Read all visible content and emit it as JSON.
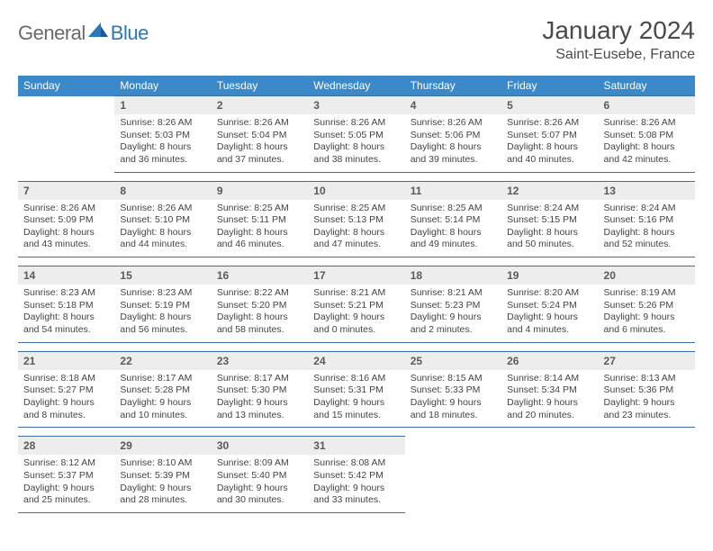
{
  "brand": {
    "part1": "General",
    "part2": "Blue"
  },
  "title": "January 2024",
  "location": "Saint-Eusebe, France",
  "dow": [
    "Sunday",
    "Monday",
    "Tuesday",
    "Wednesday",
    "Thursday",
    "Friday",
    "Saturday"
  ],
  "colors": {
    "header_bg": "#3b89c9",
    "header_text": "#ffffff",
    "rule": "#3b6fa0",
    "daynum_bg": "#ededed",
    "brand_gray": "#6a6a6a",
    "brand_blue": "#2c77b8",
    "text": "#444444",
    "background": "#ffffff"
  },
  "weeks": [
    [
      null,
      {
        "n": "1",
        "sr": "8:26 AM",
        "ss": "5:03 PM",
        "dl": "8 hours and 36 minutes."
      },
      {
        "n": "2",
        "sr": "8:26 AM",
        "ss": "5:04 PM",
        "dl": "8 hours and 37 minutes."
      },
      {
        "n": "3",
        "sr": "8:26 AM",
        "ss": "5:05 PM",
        "dl": "8 hours and 38 minutes."
      },
      {
        "n": "4",
        "sr": "8:26 AM",
        "ss": "5:06 PM",
        "dl": "8 hours and 39 minutes."
      },
      {
        "n": "5",
        "sr": "8:26 AM",
        "ss": "5:07 PM",
        "dl": "8 hours and 40 minutes."
      },
      {
        "n": "6",
        "sr": "8:26 AM",
        "ss": "5:08 PM",
        "dl": "8 hours and 42 minutes."
      }
    ],
    [
      {
        "n": "7",
        "sr": "8:26 AM",
        "ss": "5:09 PM",
        "dl": "8 hours and 43 minutes."
      },
      {
        "n": "8",
        "sr": "8:26 AM",
        "ss": "5:10 PM",
        "dl": "8 hours and 44 minutes."
      },
      {
        "n": "9",
        "sr": "8:25 AM",
        "ss": "5:11 PM",
        "dl": "8 hours and 46 minutes."
      },
      {
        "n": "10",
        "sr": "8:25 AM",
        "ss": "5:13 PM",
        "dl": "8 hours and 47 minutes."
      },
      {
        "n": "11",
        "sr": "8:25 AM",
        "ss": "5:14 PM",
        "dl": "8 hours and 49 minutes."
      },
      {
        "n": "12",
        "sr": "8:24 AM",
        "ss": "5:15 PM",
        "dl": "8 hours and 50 minutes."
      },
      {
        "n": "13",
        "sr": "8:24 AM",
        "ss": "5:16 PM",
        "dl": "8 hours and 52 minutes."
      }
    ],
    [
      {
        "n": "14",
        "sr": "8:23 AM",
        "ss": "5:18 PM",
        "dl": "8 hours and 54 minutes."
      },
      {
        "n": "15",
        "sr": "8:23 AM",
        "ss": "5:19 PM",
        "dl": "8 hours and 56 minutes."
      },
      {
        "n": "16",
        "sr": "8:22 AM",
        "ss": "5:20 PM",
        "dl": "8 hours and 58 minutes."
      },
      {
        "n": "17",
        "sr": "8:21 AM",
        "ss": "5:21 PM",
        "dl": "9 hours and 0 minutes."
      },
      {
        "n": "18",
        "sr": "8:21 AM",
        "ss": "5:23 PM",
        "dl": "9 hours and 2 minutes."
      },
      {
        "n": "19",
        "sr": "8:20 AM",
        "ss": "5:24 PM",
        "dl": "9 hours and 4 minutes."
      },
      {
        "n": "20",
        "sr": "8:19 AM",
        "ss": "5:26 PM",
        "dl": "9 hours and 6 minutes."
      }
    ],
    [
      {
        "n": "21",
        "sr": "8:18 AM",
        "ss": "5:27 PM",
        "dl": "9 hours and 8 minutes."
      },
      {
        "n": "22",
        "sr": "8:17 AM",
        "ss": "5:28 PM",
        "dl": "9 hours and 10 minutes."
      },
      {
        "n": "23",
        "sr": "8:17 AM",
        "ss": "5:30 PM",
        "dl": "9 hours and 13 minutes."
      },
      {
        "n": "24",
        "sr": "8:16 AM",
        "ss": "5:31 PM",
        "dl": "9 hours and 15 minutes."
      },
      {
        "n": "25",
        "sr": "8:15 AM",
        "ss": "5:33 PM",
        "dl": "9 hours and 18 minutes."
      },
      {
        "n": "26",
        "sr": "8:14 AM",
        "ss": "5:34 PM",
        "dl": "9 hours and 20 minutes."
      },
      {
        "n": "27",
        "sr": "8:13 AM",
        "ss": "5:36 PM",
        "dl": "9 hours and 23 minutes."
      }
    ],
    [
      {
        "n": "28",
        "sr": "8:12 AM",
        "ss": "5:37 PM",
        "dl": "9 hours and 25 minutes."
      },
      {
        "n": "29",
        "sr": "8:10 AM",
        "ss": "5:39 PM",
        "dl": "9 hours and 28 minutes."
      },
      {
        "n": "30",
        "sr": "8:09 AM",
        "ss": "5:40 PM",
        "dl": "9 hours and 30 minutes."
      },
      {
        "n": "31",
        "sr": "8:08 AM",
        "ss": "5:42 PM",
        "dl": "9 hours and 33 minutes."
      },
      null,
      null,
      null
    ]
  ],
  "labels": {
    "sunrise": "Sunrise:",
    "sunset": "Sunset:",
    "daylight": "Daylight:"
  }
}
